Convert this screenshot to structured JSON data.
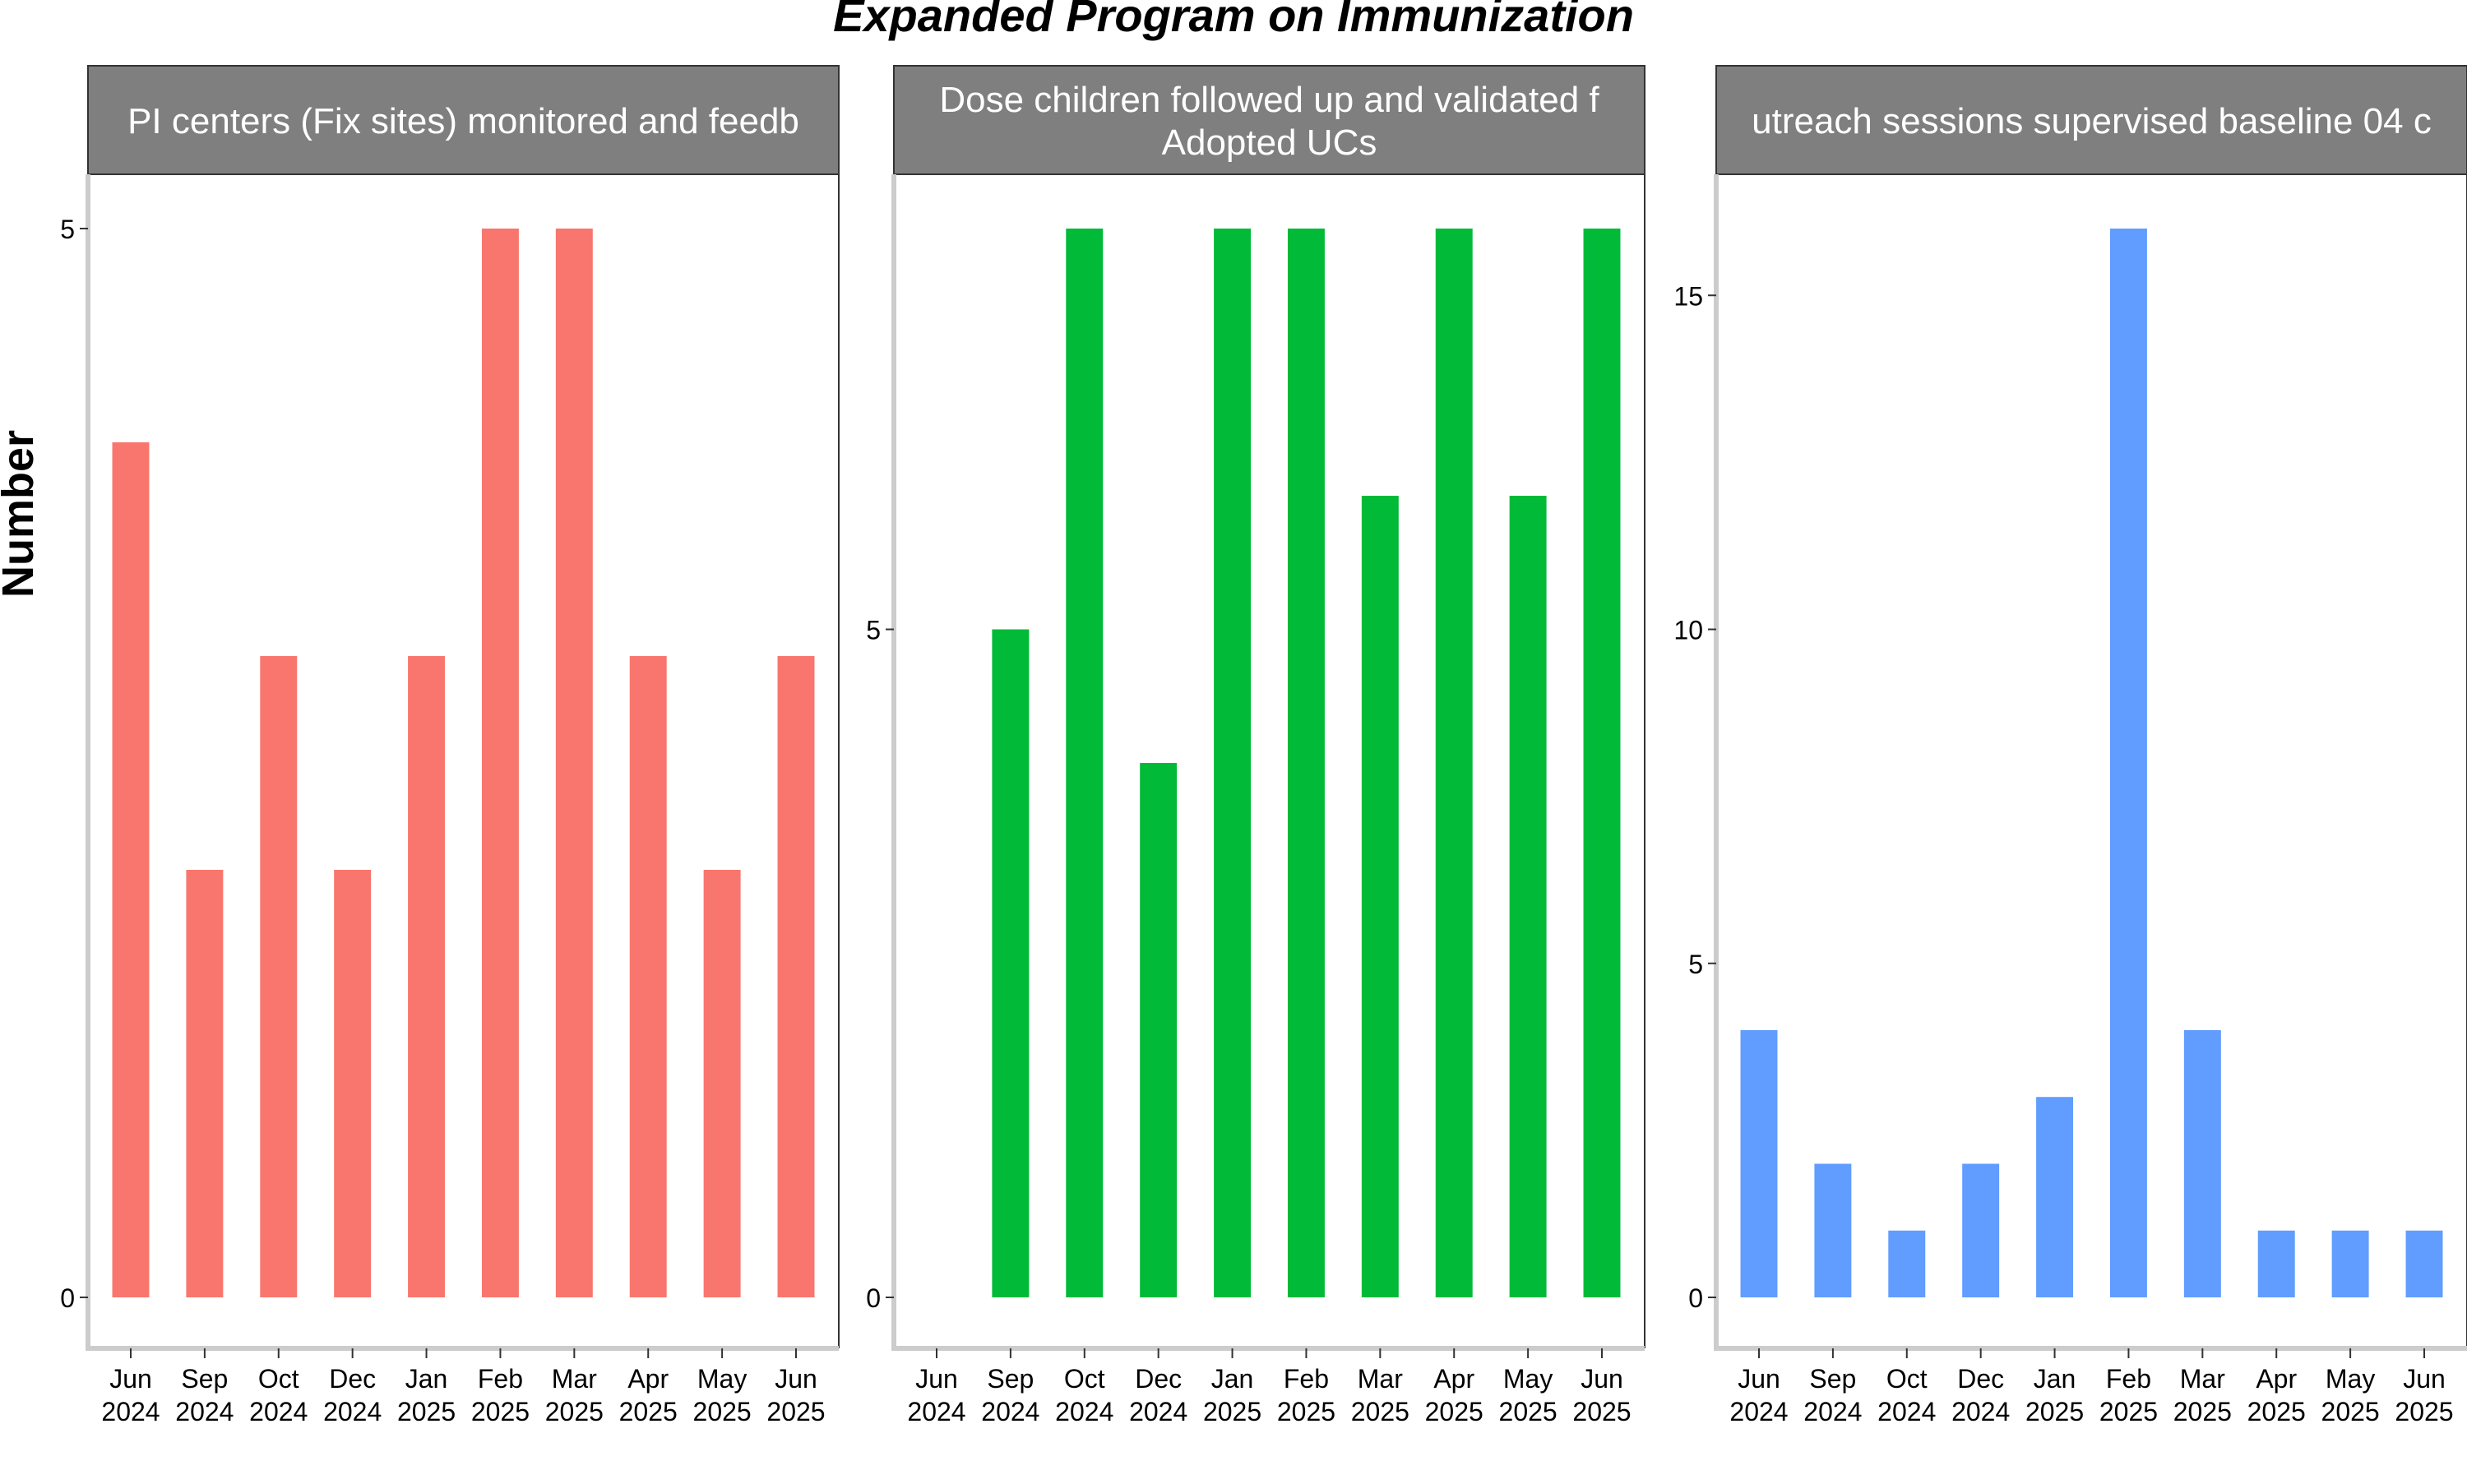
{
  "title": "Expanded Program on Immunization",
  "ylabel": "Number",
  "chart_data": [
    {
      "type": "bar",
      "panel_label": [
        "PI centers (Fix sites) monitored and feedb"
      ],
      "color": "#F8766D",
      "categories": [
        [
          "Jun",
          "2024"
        ],
        [
          "Sep",
          "2024"
        ],
        [
          "Oct",
          "2024"
        ],
        [
          "Dec",
          "2024"
        ],
        [
          "Jan",
          "2025"
        ],
        [
          "Feb",
          "2025"
        ],
        [
          "Mar",
          "2025"
        ],
        [
          "Apr",
          "2025"
        ],
        [
          "May",
          "2025"
        ],
        [
          "Jun",
          "2025"
        ]
      ],
      "values": [
        4,
        2,
        3,
        2,
        3,
        5,
        5,
        3,
        2,
        3
      ],
      "ylim": [
        0,
        5
      ],
      "yticks": [
        0,
        5
      ]
    },
    {
      "type": "bar",
      "panel_label": [
        "Dose children followed up and validated f",
        "Adopted UCs"
      ],
      "color": "#00BA38",
      "categories": [
        [
          "Jun",
          "2024"
        ],
        [
          "Sep",
          "2024"
        ],
        [
          "Oct",
          "2024"
        ],
        [
          "Dec",
          "2024"
        ],
        [
          "Jan",
          "2025"
        ],
        [
          "Feb",
          "2025"
        ],
        [
          "Mar",
          "2025"
        ],
        [
          "Apr",
          "2025"
        ],
        [
          "May",
          "2025"
        ],
        [
          "Jun",
          "2025"
        ]
      ],
      "values": [
        0,
        5,
        8,
        4,
        8,
        8,
        6,
        8,
        6,
        8
      ],
      "ylim": [
        0,
        8
      ],
      "yticks": [
        0,
        5
      ]
    },
    {
      "type": "bar",
      "panel_label": [
        "utreach sessions supervised baseline 04 c"
      ],
      "color": "#619CFF",
      "categories": [
        [
          "Jun",
          "2024"
        ],
        [
          "Sep",
          "2024"
        ],
        [
          "Oct",
          "2024"
        ],
        [
          "Dec",
          "2024"
        ],
        [
          "Jan",
          "2025"
        ],
        [
          "Feb",
          "2025"
        ],
        [
          "Mar",
          "2025"
        ],
        [
          "Apr",
          "2025"
        ],
        [
          "May",
          "2025"
        ],
        [
          "Jun",
          "2025"
        ]
      ],
      "values": [
        4,
        2,
        1,
        2,
        3,
        16,
        4,
        1,
        1,
        1
      ],
      "ylim": [
        0,
        16
      ],
      "yticks": [
        0,
        5,
        10,
        15
      ]
    }
  ]
}
